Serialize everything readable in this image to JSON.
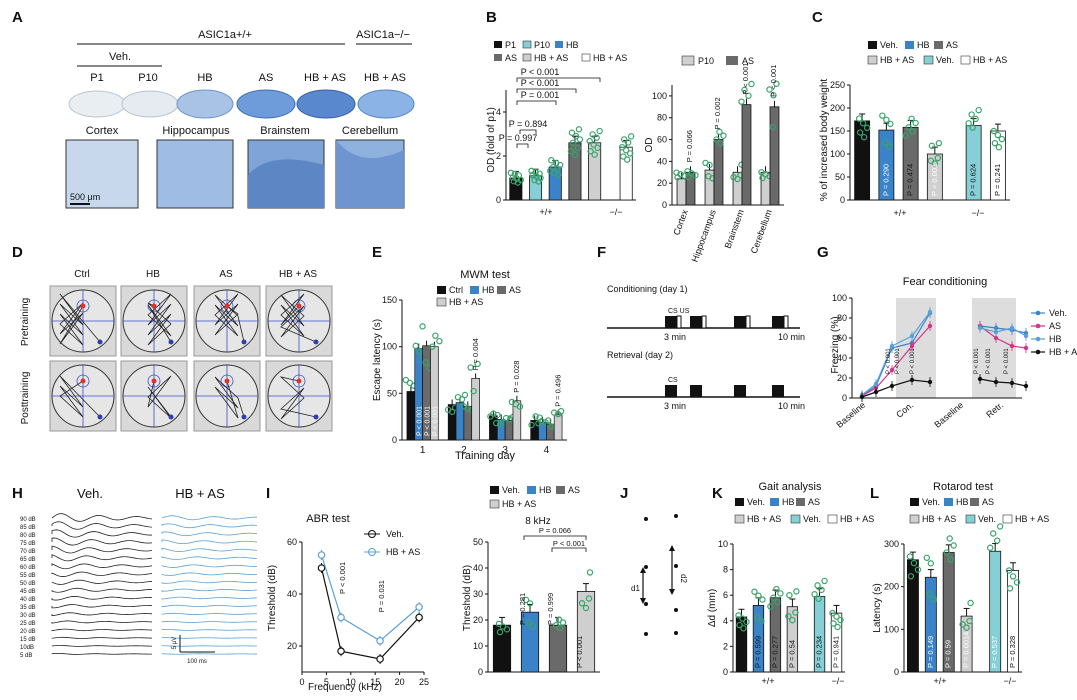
{
  "panel_letters": [
    "A",
    "B",
    "C",
    "D",
    "E",
    "F",
    "G",
    "H",
    "I",
    "J",
    "K",
    "L"
  ],
  "colors": {
    "black": "#111111",
    "blue": "#3a83c8",
    "gray": "#6a6a6a",
    "lightgray": "#cfcfcf",
    "teal": "#86cfd6",
    "white": "#ffffff",
    "green": "#3aa36b",
    "pink": "#d6338a",
    "figbg": "#ffffff"
  },
  "panelA": {
    "wt": "ASIC1a+/+",
    "ko": "ASIC1a−/−",
    "veh": "Veh.",
    "group_labels": [
      "P1",
      "P10",
      "HB",
      "AS",
      "HB + AS",
      "HB + AS"
    ],
    "region_labels": [
      "Cortex",
      "Hippocampus",
      "Brainstem",
      "Cerebellum"
    ],
    "scale_bar": "500 μm"
  },
  "panelB": {
    "legend": [
      "P1",
      "P10",
      "HB",
      "AS",
      "HB + AS",
      "HB + AS"
    ],
    "legend2": [
      "P10",
      "AS"
    ],
    "ylabel": "OD (fold of p1)",
    "ylabel2": "OD",
    "pvals": [
      "P = 0.001",
      "P < 0.001",
      "P < 0.001",
      "P = 0.894",
      "P = 0.997"
    ],
    "rot_pvals": [
      "P = 0.066",
      "P = 0.002",
      "P < 0.001",
      "P < 0.001"
    ],
    "geno": [
      "+/+",
      "−/−"
    ]
  },
  "panelC": {
    "legend": [
      "Veh.",
      "HB",
      "AS",
      "HB + AS",
      "Veh.",
      "HB + AS"
    ],
    "ylabel": "% of increased body weight",
    "pvals": [
      "P = 0.290",
      "P = 0.474",
      "P < 0.001",
      "P = 0.624",
      "P = 0.241"
    ],
    "geno": [
      "+/+",
      "−/−"
    ]
  },
  "panelD": {
    "cols": [
      "Ctrl",
      "HB",
      "AS",
      "HB + AS"
    ],
    "rows": [
      "Pretraining",
      "Posttraining"
    ]
  },
  "panelE": {
    "title": "MWM test",
    "legend": [
      "Ctrl",
      "HB",
      "AS",
      "HB + AS"
    ],
    "ylabel": "Escape latency (s)",
    "xlabel": "Training day",
    "pvals": [
      "P = 0.004",
      "P = 0.028",
      "P = 0.496"
    ],
    "bar_pvals": [
      "P < 0.001",
      "P < 0.001",
      "P < 0.001"
    ]
  },
  "panelF": {
    "cond": "Conditioning (day 1)",
    "ret": "Retrieval (day 2)",
    "csus": "CS US",
    "cs": "CS",
    "t3": "3 min",
    "t10": "10 min"
  },
  "panelG": {
    "title": "Fear conditioning",
    "ylabel": "Freezing (%)",
    "legend": [
      "Veh.",
      "AS",
      "HB",
      "HB + AS"
    ],
    "xticks": [
      "Baseline",
      "Con.",
      "Baseline",
      "Retr."
    ],
    "pvals": [
      "P < 0.001",
      "P < 0.001",
      "P < 0.001",
      "P < 0.001",
      "P < 0.001",
      "P < 0.001"
    ]
  },
  "panelH": {
    "veh": "Veh.",
    "hbas": "HB + AS",
    "db": [
      "90 dB",
      "85 dB",
      "80 dB",
      "75 dB",
      "70 dB",
      "65 dB",
      "60 dB",
      "55 dB",
      "50 dB",
      "45 dB",
      "40 dB",
      "35 dB",
      "30 dB",
      "25 dB",
      "20 dB",
      "15 dB",
      "10dB",
      "5 dB"
    ],
    "scale_y": "5 μV",
    "scale_x": "100 ms"
  },
  "panelI": {
    "title": "ABR test",
    "legend": [
      "Veh.",
      "HB + AS"
    ],
    "ylabel": "Threshold (dB)",
    "xlabel": "Frequency (kHz)",
    "pvals": [
      "P < 0.001",
      "P = 0.031"
    ],
    "bar_legend": [
      "Veh.",
      "HB",
      "AS",
      "HB + AS"
    ],
    "bar_title": "8 kHz",
    "bar_pvals": [
      "P = 0.066",
      "P < 0.001",
      "P = 0.281",
      "P = 0.999",
      "P < 0.001"
    ]
  },
  "panelJ": {
    "d1": "d1",
    "d2": "d2"
  },
  "panelK": {
    "title": "Gait analysis",
    "legend": [
      "Veh.",
      "HB",
      "AS",
      "HB + AS",
      "Veh.",
      "HB + AS"
    ],
    "ylabel": "Δd (mm)",
    "pvals": [
      "P = 0.599",
      "P = 0.277",
      "P = 0.54",
      "P = 0.234",
      "P = 0.941"
    ],
    "geno": [
      "+/+",
      "−/−"
    ]
  },
  "panelL": {
    "title": "Rotarod test",
    "legend": [
      "Veh.",
      "HB",
      "AS",
      "HB + AS",
      "Veh.",
      "HB + AS"
    ],
    "ylabel": "Latency (s)",
    "pvals": [
      "P = 0.149",
      "P = 0.59",
      "P = 0.0014",
      "P = 0.537",
      "P = 0.328"
    ],
    "geno": [
      "+/+",
      "−/−"
    ]
  },
  "chart_data": [
    {
      "id": "B_left",
      "type": "bar",
      "categories": [
        "P1",
        "P10",
        "HB",
        "AS",
        "HB + AS",
        "HB + AS"
      ],
      "values": [
        1.0,
        1.1,
        1.5,
        2.6,
        2.6,
        2.4
      ],
      "ylim": [
        0,
        5
      ],
      "yticks": [
        0,
        2,
        4
      ]
    },
    {
      "id": "B_right",
      "type": "bar",
      "categories": [
        "Cortex",
        "Hippocampus",
        "Brainstem",
        "Cerebellum"
      ],
      "series": [
        {
          "name": "P10",
          "values": [
            24,
            32,
            30,
            30
          ]
        },
        {
          "name": "AS",
          "values": [
            30,
            60,
            92,
            90
          ]
        }
      ],
      "ylim": [
        0,
        110
      ],
      "yticks": [
        0,
        20,
        40,
        60,
        80,
        100
      ]
    },
    {
      "id": "C",
      "type": "bar",
      "categories": [
        "Veh.",
        "HB",
        "AS",
        "HB + AS",
        "Veh.",
        "HB + AS"
      ],
      "values": [
        172,
        152,
        158,
        100,
        162,
        150
      ],
      "ylim": [
        0,
        250
      ],
      "yticks": [
        0,
        50,
        100,
        150,
        200,
        250
      ]
    },
    {
      "id": "E",
      "type": "bar",
      "categories": [
        "1",
        "2",
        "3",
        "4"
      ],
      "series": [
        {
          "name": "Ctrl",
          "values": [
            52,
            38,
            26,
            21
          ]
        },
        {
          "name": "HB",
          "values": [
            98,
            40,
            22,
            19
          ]
        },
        {
          "name": "AS",
          "values": [
            101,
            36,
            21,
            17
          ]
        },
        {
          "name": "HB + AS",
          "values": [
            100,
            66,
            42,
            27
          ]
        }
      ],
      "ylim": [
        0,
        150
      ],
      "yticks": [
        0,
        50,
        100,
        150
      ]
    },
    {
      "id": "G",
      "type": "line",
      "x": [
        1,
        2,
        3,
        4,
        5,
        6,
        7,
        8,
        9,
        10,
        11,
        12,
        13,
        14
      ],
      "series": [
        {
          "name": "Veh.",
          "values": [
            2,
            12,
            50,
            55,
            85,
            null,
            72,
            70,
            68,
            65,
            null,
            null,
            null,
            null
          ]
        },
        {
          "name": "AS",
          "values": [
            2,
            10,
            28,
            52,
            72,
            null,
            72,
            60,
            52,
            50,
            null,
            null,
            null,
            null
          ]
        },
        {
          "name": "HB",
          "values": [
            3,
            14,
            52,
            62,
            86,
            null,
            70,
            66,
            70,
            62,
            null,
            null,
            null,
            null
          ]
        },
        {
          "name": "HB + AS",
          "values": [
            1,
            6,
            12,
            18,
            16,
            null,
            19,
            16,
            15,
            12,
            null,
            null,
            null,
            null
          ]
        }
      ],
      "ylim": [
        0,
        100
      ],
      "yticks": [
        0,
        20,
        40,
        60,
        80,
        100
      ]
    },
    {
      "id": "I_line",
      "type": "line",
      "x": [
        4,
        8,
        16,
        24
      ],
      "series": [
        {
          "name": "Veh.",
          "values": [
            50,
            18,
            15,
            31
          ]
        },
        {
          "name": "HB + AS",
          "values": [
            55,
            31,
            22,
            35
          ]
        }
      ],
      "ylim": [
        10,
        60
      ],
      "yticks": [
        20,
        40,
        60
      ],
      "xticks": [
        0,
        5,
        10,
        15,
        20,
        25
      ]
    },
    {
      "id": "I_bar",
      "type": "bar",
      "categories": [
        "Veh.",
        "HB",
        "AS",
        "HB + AS"
      ],
      "values": [
        18,
        23,
        18,
        31
      ],
      "ylim": [
        0,
        50
      ],
      "yticks": [
        0,
        10,
        20,
        30,
        40,
        50
      ]
    },
    {
      "id": "K",
      "type": "bar",
      "categories": [
        "Veh.",
        "HB",
        "AS",
        "HB + AS",
        "Veh.",
        "HB + AS"
      ],
      "values": [
        4.3,
        5.2,
        5.8,
        5.1,
        5.9,
        4.6
      ],
      "ylim": [
        0,
        10
      ],
      "yticks": [
        0,
        2,
        4,
        6,
        8,
        10
      ]
    },
    {
      "id": "L",
      "type": "bar",
      "categories": [
        "Veh.",
        "HB",
        "AS",
        "HB + AS",
        "Veh.",
        "HB + AS"
      ],
      "values": [
        263,
        222,
        280,
        131,
        283,
        238
      ],
      "ylim": [
        0,
        300
      ],
      "yticks": [
        0,
        100,
        200,
        300
      ]
    }
  ]
}
